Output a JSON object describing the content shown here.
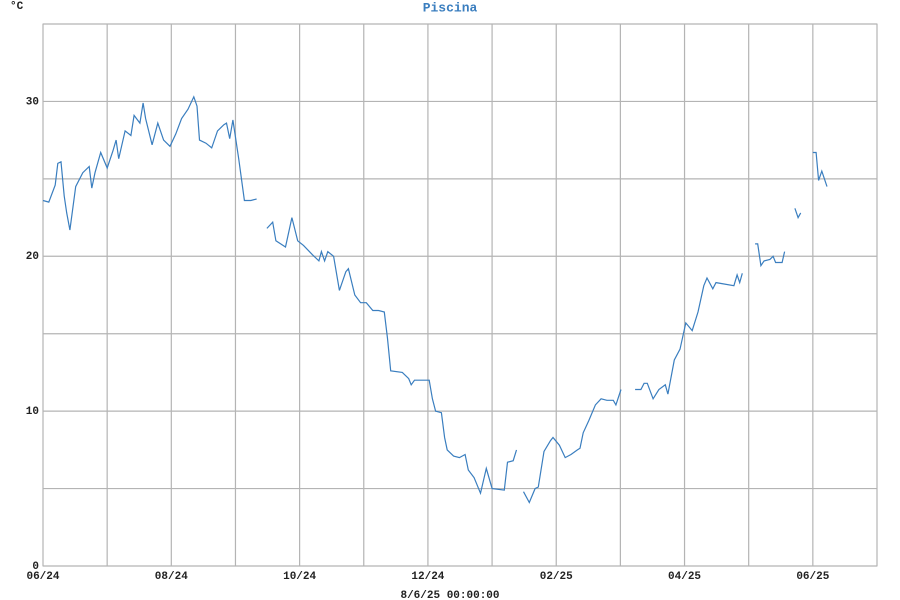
{
  "chart_data": {
    "type": "line",
    "title": "Piscina",
    "y_label": "°C",
    "x_label": "8/6/25 00:00:00",
    "series": [
      {
        "name": "Piscina",
        "color": "#3a7ebf",
        "x": [
          0,
          0.09,
          0.19,
          0.23,
          0.28,
          0.33,
          0.37,
          0.42,
          0.51,
          0.62,
          0.72,
          0.76,
          0.81,
          0.9,
          1.0,
          1.09,
          1.14,
          1.18,
          1.28,
          1.37,
          1.42,
          1.51,
          1.56,
          1.6,
          1.7,
          1.79,
          1.88,
          1.98,
          2.07,
          2.16,
          2.26,
          2.35,
          2.4,
          2.44,
          2.54,
          2.63,
          2.72,
          2.82,
          2.86,
          2.91,
          2.96,
          3.05,
          3.14,
          3.24,
          3.33,
          3.4,
          3.49,
          3.58,
          3.63,
          3.78,
          3.88,
          3.97,
          4.06,
          4.2,
          4.3,
          4.34,
          4.39,
          4.44,
          4.53,
          4.62,
          4.72,
          4.76,
          4.86,
          4.95,
          5.04,
          5.14,
          5.23,
          5.32,
          5.37,
          5.42,
          5.6,
          5.7,
          5.74,
          5.79,
          6.02,
          6.07,
          6.12,
          6.21,
          6.26,
          6.3,
          6.4,
          6.49,
          6.58,
          6.63,
          6.72,
          6.82,
          6.91,
          7.0,
          7.19,
          7.24,
          7.33,
          7.38,
          7.43,
          7.49,
          7.58,
          7.67,
          7.72,
          7.81,
          7.91,
          7.95,
          8.05,
          8.14,
          8.23,
          8.33,
          8.37,
          8.42,
          8.51,
          8.61,
          8.7,
          8.79,
          8.89,
          8.93,
          9.01,
          9.1,
          9.23,
          9.32,
          9.37,
          9.42,
          9.51,
          9.6,
          9.7,
          9.74,
          9.84,
          9.93,
          10.02,
          10.12,
          10.21,
          10.3,
          10.35,
          10.44,
          10.49,
          10.77,
          10.82,
          10.86,
          10.9,
          10.95,
          11.1,
          11.14,
          11.19,
          11.24,
          11.33,
          11.38,
          11.42,
          11.52,
          11.56,
          11.6,
          11.72,
          11.77,
          11.81,
          11.87,
          12.0,
          12.05,
          12.09,
          12.14,
          12.22
        ],
        "values": [
          23.6,
          23.5,
          24.6,
          26.0,
          26.1,
          23.9,
          22.8,
          21.7,
          24.5,
          25.4,
          25.8,
          24.4,
          25.4,
          26.7,
          25.7,
          26.8,
          27.5,
          26.3,
          28.1,
          27.8,
          29.1,
          28.6,
          29.9,
          28.9,
          27.2,
          28.6,
          27.5,
          27.1,
          27.9,
          28.9,
          29.5,
          30.3,
          29.7,
          27.5,
          27.3,
          27.0,
          28.1,
          28.5,
          28.6,
          27.6,
          28.8,
          26.3,
          23.6,
          23.6,
          23.7,
          null,
          21.8,
          22.2,
          21.0,
          20.6,
          22.5,
          21.0,
          20.7,
          20.1,
          19.7,
          20.3,
          19.7,
          20.3,
          20.0,
          17.8,
          19.0,
          19.2,
          17.5,
          17.0,
          17.0,
          16.5,
          16.5,
          16.4,
          14.7,
          12.6,
          12.5,
          12.1,
          11.7,
          12.0,
          12.0,
          10.8,
          10.0,
          9.9,
          8.3,
          7.5,
          7.1,
          7.0,
          7.2,
          6.2,
          5.7,
          4.7,
          6.3,
          5.0,
          4.9,
          6.7,
          6.8,
          7.5,
          null,
          4.8,
          4.1,
          5.0,
          5.1,
          7.4,
          8.1,
          8.3,
          7.8,
          7.0,
          7.2,
          7.5,
          7.6,
          8.6,
          9.4,
          10.4,
          10.8,
          10.7,
          10.7,
          10.4,
          11.4,
          null,
          11.4,
          11.4,
          11.8,
          11.8,
          10.8,
          11.4,
          11.7,
          11.1,
          13.3,
          14.0,
          15.7,
          15.2,
          16.4,
          18.1,
          18.6,
          17.9,
          18.3,
          18.1,
          18.8,
          18.3,
          18.9,
          null,
          20.8,
          20.8,
          19.4,
          19.7,
          19.8,
          20.0,
          19.6,
          19.6,
          20.3,
          null,
          23.1,
          22.5,
          22.8,
          null,
          26.7,
          26.7,
          24.9,
          25.5,
          24.5
        ]
      }
    ],
    "xlim": [
      0,
      13
    ],
    "xticks": [
      {
        "value": 0,
        "label": "06/24"
      },
      {
        "value": 2,
        "label": "08/24"
      },
      {
        "value": 4,
        "label": "10/24"
      },
      {
        "value": 6,
        "label": "12/24"
      },
      {
        "value": 8,
        "label": "02/25"
      },
      {
        "value": 10,
        "label": "04/25"
      },
      {
        "value": 12,
        "label": "06/25"
      }
    ],
    "x_minor_grid": [
      1,
      3,
      5,
      7,
      9,
      11,
      13
    ],
    "ylim": [
      0,
      35
    ],
    "yticks": [
      0,
      10,
      20,
      30
    ],
    "y_minor_grid": [
      5,
      15,
      25,
      35
    ],
    "grid": true
  }
}
